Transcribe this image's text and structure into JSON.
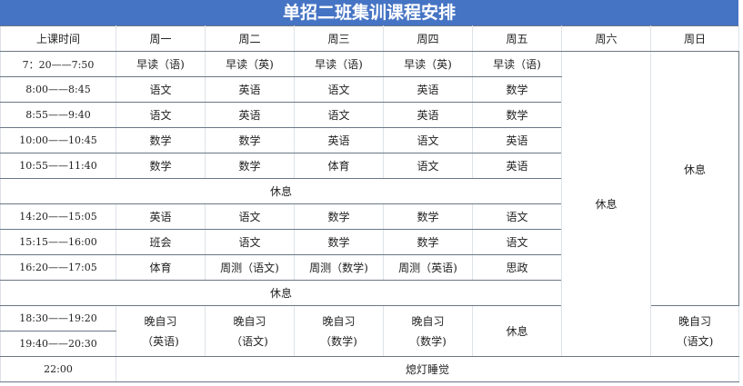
{
  "title": "单招二班集训课程安排",
  "header": [
    "上课时间",
    "周一",
    "周二",
    "周三",
    "周四",
    "周五",
    "周六",
    "周日"
  ],
  "rows": [
    {
      "time": "7：20——7:50",
      "cells": [
        "早读（语)",
        "早读（英)",
        "早读（语)",
        "早读（英)",
        "早读（语)"
      ]
    },
    {
      "time": "8:00——8:45",
      "cells": [
        "语文",
        "英语",
        "语文",
        "英语",
        "数学"
      ]
    },
    {
      "time": "8:55——9:40",
      "cells": [
        "语文",
        "英语",
        "语文",
        "英语",
        "数学"
      ]
    },
    {
      "time": "10:00——10:45",
      "cells": [
        "数学",
        "数学",
        "英语",
        "语文",
        "英语"
      ]
    },
    {
      "time": "10:55——11:40",
      "cells": [
        "数学",
        "数学",
        "体育",
        "语文",
        "英语"
      ]
    },
    {
      "time": "14:20——15:05",
      "cells": [
        "英语",
        "语文",
        "数学",
        "数学",
        "语文"
      ]
    },
    {
      "time": "15:15——16:00",
      "cells": [
        "班会",
        "语文",
        "数学",
        "数学",
        "语文"
      ]
    },
    {
      "time": "16:20——17:05",
      "cells": [
        "体育",
        "周测（语文)",
        "周测（数学)",
        "周测（英语)",
        "思政"
      ]
    }
  ],
  "noon_break": "休息",
  "afternoon_break": "休息",
  "saturday": "休息",
  "sunday_day": "休息",
  "evening": {
    "times": [
      "18:30——19:20",
      "19:40——20:30"
    ],
    "mon": [
      "晚自习",
      "（英语)"
    ],
    "tue": [
      "晚自习",
      "（语文)"
    ],
    "wed": [
      "晚自习",
      "（数学)"
    ],
    "thu": [
      "晚自习",
      "（数学)"
    ],
    "fri": "休息",
    "sun": [
      "晚自习",
      "（语文)"
    ]
  },
  "night": {
    "time": "22:00",
    "label": "熄灯睡觉"
  }
}
